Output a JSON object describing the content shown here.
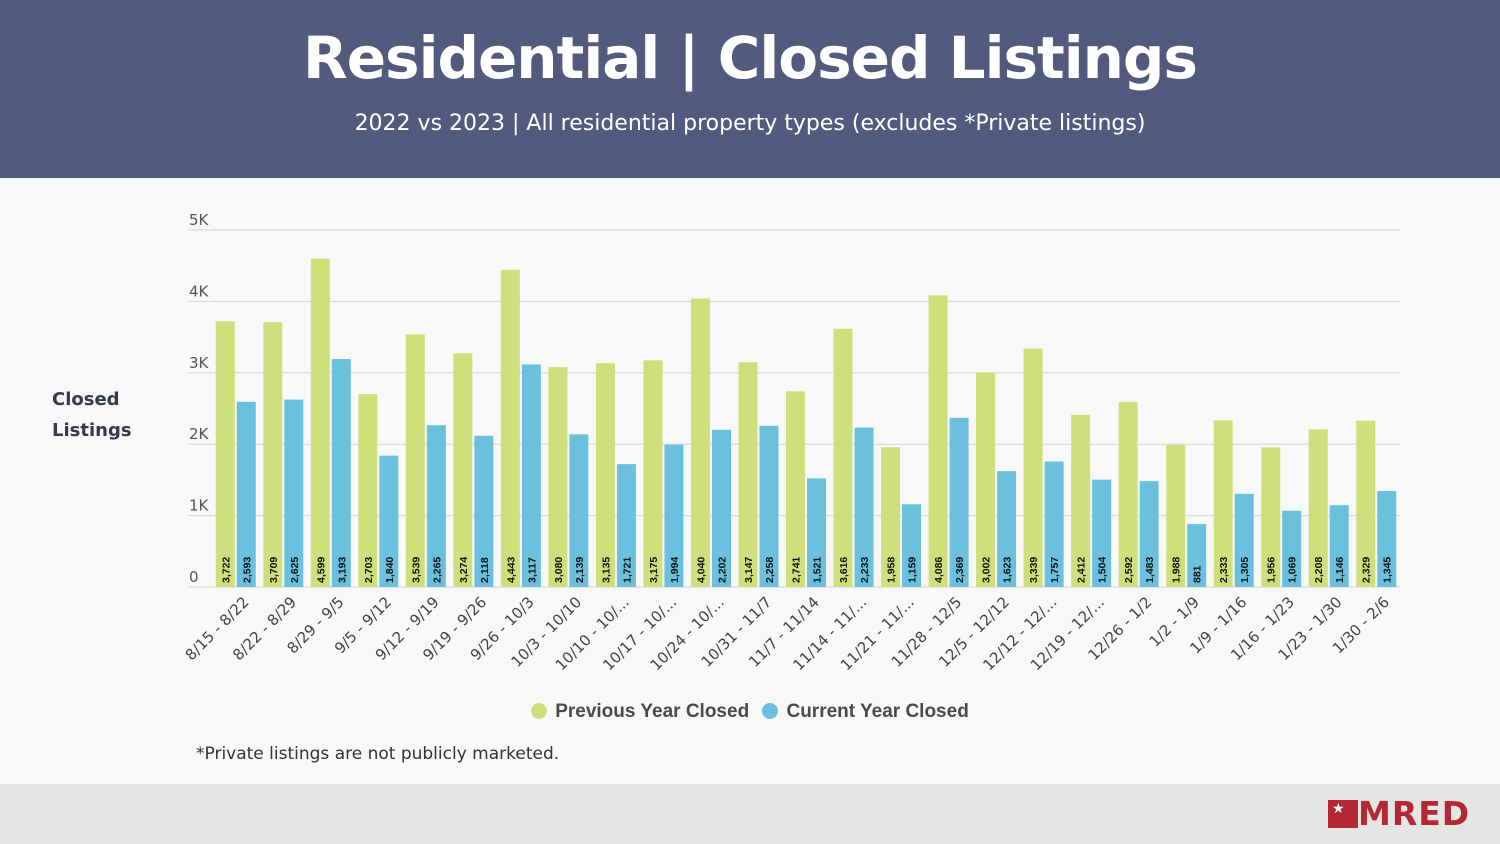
{
  "header": {
    "title": "Residential | Closed Listings",
    "subtitle": "2022 vs 2023 | All residential property types (excludes *Private listings)"
  },
  "footnote": "*Private listings are not publicly marketed.",
  "logo": {
    "text": "MRED"
  },
  "colors": {
    "previous": "#cee07c",
    "current": "#6bc1dd",
    "header_bg": "#525a7d",
    "brand": "#b52732"
  },
  "chart_data": {
    "type": "bar",
    "ylabel": [
      "Closed",
      "Listings"
    ],
    "ylim": [
      0,
      5000
    ],
    "yticks": [
      0,
      1000,
      2000,
      3000,
      4000,
      5000
    ],
    "ytick_labels": [
      "0",
      "1K",
      "2K",
      "3K",
      "4K",
      "5K"
    ],
    "grid": true,
    "legend_position": "bottom",
    "categories": [
      "8/15 - 8/22",
      "8/22 - 8/29",
      "8/29 - 9/5",
      "9/5 - 9/12",
      "9/12 - 9/19",
      "9/19 - 9/26",
      "9/26 - 10/3",
      "10/3 - 10/10",
      "10/10 - 10/...",
      "10/17 - 10/...",
      "10/24 - 10/...",
      "10/31 - 11/7",
      "11/7 - 11/14",
      "11/14 - 11/...",
      "11/21 - 11/...",
      "11/28 - 12/5",
      "12/5 - 12/12",
      "12/12 - 12/...",
      "12/19 - 12/...",
      "12/26 - 1/2",
      "1/2 - 1/9",
      "1/9 - 1/16",
      "1/16 - 1/23",
      "1/23 - 1/30",
      "1/30 - 2/6"
    ],
    "series": [
      {
        "name": "Previous Year Closed",
        "values": [
          3722,
          3709,
          4599,
          2703,
          3539,
          3274,
          4443,
          3080,
          3135,
          3175,
          4040,
          3147,
          2741,
          3616,
          1958,
          4086,
          3002,
          3339,
          2412,
          2592,
          1988,
          2333,
          1956,
          2208,
          2329
        ],
        "labels": [
          "3,722",
          "3,709",
          "4,599",
          "2,703",
          "3,539",
          "3,274",
          "4,443",
          "3,080",
          "3,135",
          "3,175",
          "4,040",
          "3,147",
          "2,741",
          "3,616",
          "1,958",
          "4,086",
          "3,002",
          "3,339",
          "2,412",
          "2,592",
          "1,988",
          "2,333",
          "1,956",
          "2,208",
          "2,329"
        ]
      },
      {
        "name": "Current Year Closed",
        "values": [
          2593,
          2625,
          3193,
          1840,
          2265,
          2118,
          3117,
          2139,
          1721,
          1994,
          2202,
          2258,
          1521,
          2233,
          1159,
          2369,
          1623,
          1757,
          1504,
          1483,
          881,
          1305,
          1069,
          1146,
          1345
        ],
        "labels": [
          "2,593",
          "2,625",
          "3,193",
          "1,840",
          "2,265",
          "2,118",
          "3,117",
          "2,139",
          "1,721",
          "1,994",
          "2,202",
          "2,258",
          "1,521",
          "2,233",
          "1,159",
          "2,369",
          "1,623",
          "1,757",
          "1,504",
          "1,483",
          "881",
          "1,305",
          "1,069",
          "1,146",
          "1,345"
        ]
      }
    ]
  }
}
